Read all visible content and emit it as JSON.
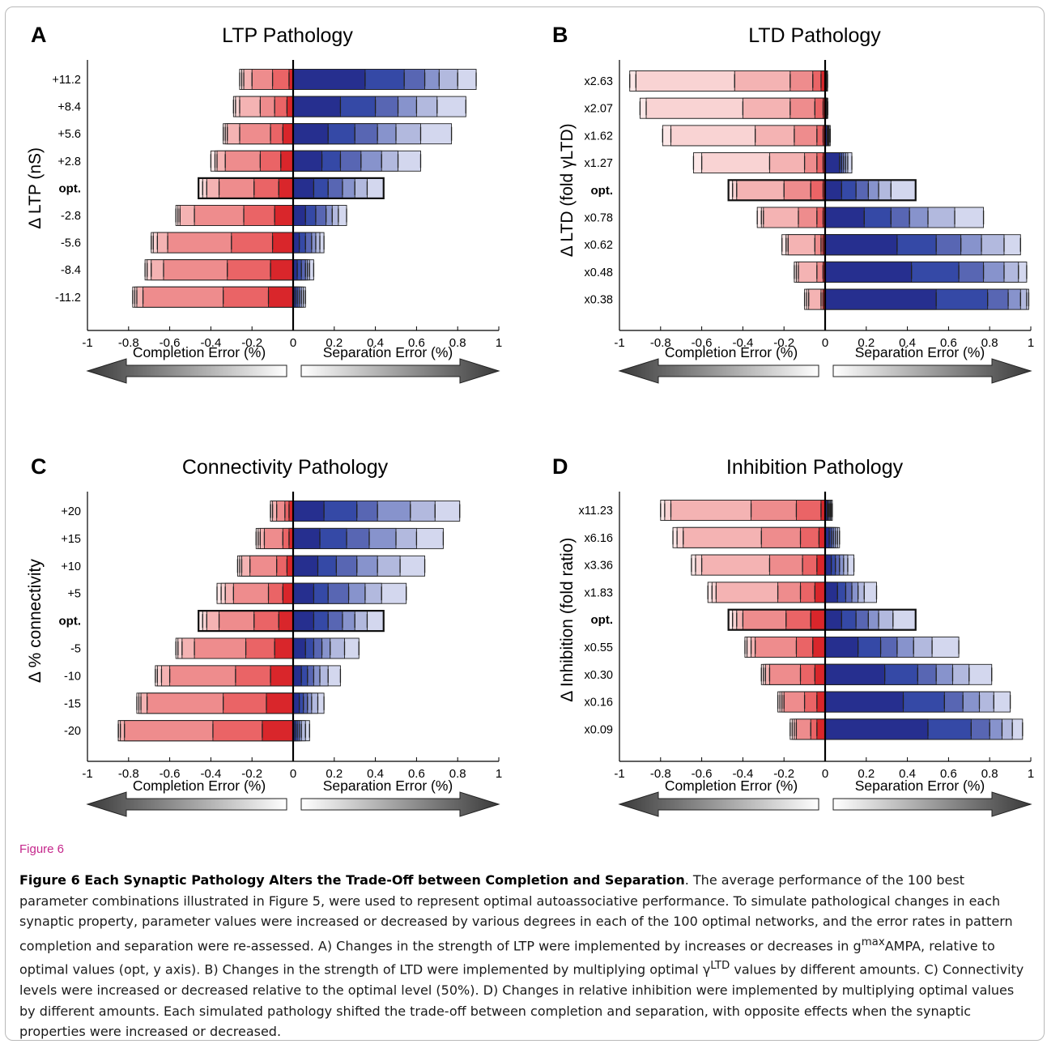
{
  "colors": {
    "blue_shades": [
      "#262f8f",
      "#3549a6",
      "#5866b3",
      "#8793cc",
      "#b2b9de",
      "#d3d7ee"
    ],
    "red_shades": [
      "#d9262b",
      "#ea6466",
      "#ee8c8d",
      "#f4b3b3",
      "#f9d3d3",
      "#fce7e7"
    ],
    "figure_label": "#c5268b"
  },
  "figure": {
    "label": "Figure 6",
    "caption_title": "Figure 6 Each Synaptic Pathology Alters the Trade-Off between Completion and Separation",
    "caption_segments": [
      {
        "text": ". The average performance of the 100 best parameter combinations illustrated in Figure 5, were used to represent optimal autoassociative performance. To simulate pathological changes in each synaptic property, parameter values were increased or decreased by various degrees in each of the 100 optimal networks, and the error rates in pattern completion and separation were re-assessed. A) Changes in the strength of LTP were implemented by increases or decreases in g",
        "sup": "max"
      },
      {
        "text": "AMPA, relative to optimal values (opt, y axis). B) Changes in the strength of LTD were implemented by multiplying optimal γ",
        "sup": "LTD"
      },
      {
        "text": " values by different amounts. C) Connectivity levels were increased or decreased relative to the optimal level (50%). D) Changes in relative inhibition were implemented by multiplying optimal values by different amounts. Each simulated pathology shifted the trade-off between completion and separation, with opposite effects when the synaptic properties were increased or decreased.",
        "sup": ""
      }
    ]
  },
  "chart_data": [
    {
      "type": "bar",
      "panel": "A",
      "title": "LTP Pathology",
      "ylabel": "Δ LTP (nS)",
      "xlim": [
        -1,
        1
      ],
      "xticks": [
        "-1",
        "-0.8",
        "-0.6",
        "-0.4",
        "-0.2",
        "0",
        "0.2",
        "0.4",
        "0.6",
        "0.8",
        "1"
      ],
      "arrow_left_label": "Completion Error (%)",
      "arrow_right_label": "Separation Error (%)",
      "categories": [
        "+11.2",
        "+8.4",
        "+5.6",
        "+2.8",
        "opt.",
        "-2.8",
        "-5.6",
        "-8.4",
        "-11.2"
      ],
      "bold_category": "opt.",
      "completion_error": [
        [
          -0.02,
          -0.1,
          -0.2,
          -0.24,
          -0.25,
          -0.26
        ],
        [
          -0.03,
          -0.09,
          -0.16,
          -0.26,
          -0.28,
          -0.29
        ],
        [
          -0.05,
          -0.11,
          -0.26,
          -0.32,
          -0.33,
          -0.34
        ],
        [
          -0.06,
          -0.16,
          -0.33,
          -0.37,
          -0.38,
          -0.4
        ],
        [
          -0.07,
          -0.19,
          -0.36,
          -0.42,
          -0.44,
          -0.46
        ],
        [
          -0.09,
          -0.24,
          -0.48,
          -0.55,
          -0.56,
          -0.57
        ],
        [
          -0.1,
          -0.3,
          -0.61,
          -0.66,
          -0.68,
          -0.69
        ],
        [
          -0.11,
          -0.32,
          -0.63,
          -0.69,
          -0.71,
          -0.72
        ],
        [
          -0.12,
          -0.34,
          -0.73,
          -0.76,
          -0.77,
          -0.78
        ]
      ],
      "separation_error": [
        [
          0.35,
          0.54,
          0.64,
          0.71,
          0.8,
          0.89
        ],
        [
          0.23,
          0.4,
          0.51,
          0.6,
          0.7,
          0.84
        ],
        [
          0.17,
          0.3,
          0.41,
          0.5,
          0.62,
          0.77
        ],
        [
          0.14,
          0.23,
          0.33,
          0.43,
          0.51,
          0.62
        ],
        [
          0.1,
          0.17,
          0.24,
          0.3,
          0.36,
          0.44
        ],
        [
          0.06,
          0.11,
          0.16,
          0.19,
          0.22,
          0.26
        ],
        [
          0.03,
          0.06,
          0.09,
          0.11,
          0.13,
          0.15
        ],
        [
          0.02,
          0.04,
          0.06,
          0.07,
          0.08,
          0.1
        ],
        [
          0.01,
          0.02,
          0.03,
          0.04,
          0.05,
          0.06
        ]
      ]
    },
    {
      "type": "bar",
      "panel": "B",
      "title": "LTD Pathology",
      "ylabel": "Δ LTD (fold γLTD)",
      "xlim": [
        -1,
        1
      ],
      "xticks": [
        "-1",
        "-0.8",
        "-0.6",
        "-0.4",
        "-0.2",
        "0",
        "0.2",
        "0.4",
        "0.6",
        "0.8",
        "1"
      ],
      "arrow_left_label": "Completion Error (%)",
      "arrow_right_label": "Separation Error (%)",
      "categories": [
        "x2.63",
        "x2.07",
        "x1.62",
        "x1.27",
        "opt.",
        "x0.78",
        "x0.62",
        "x0.48",
        "x0.38"
      ],
      "bold_category": "opt.",
      "completion_error": [
        [
          -0.02,
          -0.06,
          -0.17,
          -0.44,
          -0.92,
          -0.95
        ],
        [
          -0.01,
          -0.05,
          -0.17,
          -0.4,
          -0.87,
          -0.9
        ],
        [
          -0.01,
          -0.04,
          -0.15,
          -0.34,
          -0.75,
          -0.79
        ],
        [
          -0.01,
          -0.04,
          -0.1,
          -0.27,
          -0.6,
          -0.64
        ],
        [
          -0.01,
          -0.07,
          -0.2,
          -0.43,
          -0.45,
          -0.47
        ],
        [
          -0.01,
          -0.04,
          -0.13,
          -0.3,
          -0.31,
          -0.33
        ],
        [
          -0.01,
          -0.02,
          -0.05,
          -0.18,
          -0.19,
          -0.21
        ],
        [
          -0.01,
          -0.01,
          -0.04,
          -0.13,
          -0.14,
          -0.15
        ],
        [
          -0.01,
          -0.01,
          -0.02,
          -0.08,
          -0.09,
          -0.1
        ]
      ],
      "separation_error": [
        [
          0.005,
          0.007,
          0.008,
          0.009,
          0.01,
          0.012
        ],
        [
          0.005,
          0.007,
          0.008,
          0.009,
          0.01,
          0.013
        ],
        [
          0.01,
          0.013,
          0.016,
          0.018,
          0.02,
          0.025
        ],
        [
          0.07,
          0.08,
          0.09,
          0.1,
          0.11,
          0.13
        ],
        [
          0.08,
          0.15,
          0.21,
          0.26,
          0.32,
          0.44
        ],
        [
          0.19,
          0.32,
          0.41,
          0.5,
          0.63,
          0.77
        ],
        [
          0.35,
          0.54,
          0.66,
          0.76,
          0.87,
          0.95
        ],
        [
          0.42,
          0.65,
          0.77,
          0.87,
          0.94,
          0.98
        ],
        [
          0.54,
          0.79,
          0.89,
          0.95,
          0.98,
          0.99
        ]
      ]
    },
    {
      "type": "bar",
      "panel": "C",
      "title": "Connectivity Pathology",
      "ylabel": "Δ % connectivity",
      "xlim": [
        -1,
        1
      ],
      "xticks": [
        "-1",
        "-0.8",
        "-0.6",
        "-0.4",
        "-0.2",
        "0",
        "0.2",
        "0.4",
        "0.6",
        "0.8",
        "1"
      ],
      "arrow_left_label": "Completion Error (%)",
      "arrow_right_label": "Separation Error (%)",
      "categories": [
        "+20",
        "+15",
        "+10",
        "+5",
        "opt.",
        "-5",
        "-10",
        "-15",
        "-20"
      ],
      "bold_category": "opt.",
      "completion_error": [
        [
          -0.02,
          -0.04,
          -0.08,
          -0.1,
          -0.11,
          -0.11
        ],
        [
          -0.02,
          -0.05,
          -0.14,
          -0.16,
          -0.17,
          -0.18
        ],
        [
          -0.03,
          -0.08,
          -0.21,
          -0.25,
          -0.26,
          -0.27
        ],
        [
          -0.05,
          -0.12,
          -0.29,
          -0.33,
          -0.35,
          -0.37
        ],
        [
          -0.07,
          -0.19,
          -0.36,
          -0.42,
          -0.44,
          -0.46
        ],
        [
          -0.09,
          -0.23,
          -0.48,
          -0.54,
          -0.56,
          -0.57
        ],
        [
          -0.11,
          -0.28,
          -0.6,
          -0.64,
          -0.66,
          -0.67
        ],
        [
          -0.13,
          -0.34,
          -0.71,
          -0.74,
          -0.75,
          -0.76
        ],
        [
          -0.15,
          -0.39,
          -0.82,
          -0.84,
          -0.85,
          -0.85
        ]
      ],
      "separation_error": [
        [
          0.15,
          0.31,
          0.41,
          0.57,
          0.69,
          0.81
        ],
        [
          0.13,
          0.26,
          0.37,
          0.5,
          0.6,
          0.73
        ],
        [
          0.12,
          0.21,
          0.31,
          0.41,
          0.52,
          0.64
        ],
        [
          0.1,
          0.17,
          0.27,
          0.35,
          0.43,
          0.55
        ],
        [
          0.1,
          0.17,
          0.24,
          0.3,
          0.36,
          0.44
        ],
        [
          0.06,
          0.1,
          0.14,
          0.18,
          0.25,
          0.32
        ],
        [
          0.04,
          0.07,
          0.1,
          0.13,
          0.17,
          0.23
        ],
        [
          0.03,
          0.05,
          0.07,
          0.09,
          0.12,
          0.15
        ],
        [
          0.01,
          0.02,
          0.03,
          0.04,
          0.06,
          0.08
        ]
      ]
    },
    {
      "type": "bar",
      "panel": "D",
      "title": "Inhibition Pathology",
      "ylabel": "Δ Inhibition (fold ratio)",
      "xlim": [
        -1,
        1
      ],
      "xticks": [
        "-1",
        "-0.8",
        "-0.6",
        "-0.4",
        "-0.2",
        "0",
        "0.2",
        "0.4",
        "0.6",
        "0.8",
        "1"
      ],
      "arrow_left_label": "Completion Error (%)",
      "arrow_right_label": "Separation Error (%)",
      "categories": [
        "x11.23",
        "x6.16",
        "x3.36",
        "x1.83",
        "opt.",
        "x0.55",
        "x0.30",
        "x0.16",
        "x0.09"
      ],
      "bold_category": "opt.",
      "completion_error": [
        [
          -0.02,
          -0.14,
          -0.36,
          -0.75,
          -0.78,
          -0.8
        ],
        [
          -0.03,
          -0.12,
          -0.31,
          -0.69,
          -0.72,
          -0.74
        ],
        [
          -0.04,
          -0.11,
          -0.27,
          -0.6,
          -0.63,
          -0.65
        ],
        [
          -0.05,
          -0.12,
          -0.23,
          -0.53,
          -0.55,
          -0.57
        ],
        [
          -0.07,
          -0.19,
          -0.4,
          -0.43,
          -0.45,
          -0.47
        ],
        [
          -0.06,
          -0.14,
          -0.34,
          -0.36,
          -0.38,
          -0.39
        ],
        [
          -0.05,
          -0.12,
          -0.27,
          -0.29,
          -0.3,
          -0.31
        ],
        [
          -0.04,
          -0.1,
          -0.2,
          -0.21,
          -0.22,
          -0.23
        ],
        [
          -0.04,
          -0.07,
          -0.14,
          -0.15,
          -0.16,
          -0.17
        ]
      ],
      "separation_error": [
        [
          0.01,
          0.015,
          0.02,
          0.025,
          0.03,
          0.035
        ],
        [
          0.02,
          0.03,
          0.04,
          0.05,
          0.06,
          0.07
        ],
        [
          0.03,
          0.05,
          0.07,
          0.09,
          0.11,
          0.14
        ],
        [
          0.06,
          0.1,
          0.13,
          0.16,
          0.19,
          0.25
        ],
        [
          0.08,
          0.15,
          0.21,
          0.26,
          0.33,
          0.44
        ],
        [
          0.16,
          0.27,
          0.35,
          0.43,
          0.52,
          0.65
        ],
        [
          0.29,
          0.45,
          0.54,
          0.62,
          0.7,
          0.81
        ],
        [
          0.38,
          0.58,
          0.67,
          0.75,
          0.82,
          0.9
        ],
        [
          0.5,
          0.71,
          0.8,
          0.86,
          0.91,
          0.96
        ]
      ]
    }
  ]
}
